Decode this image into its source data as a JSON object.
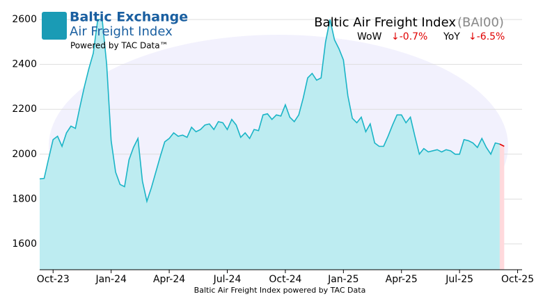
{
  "chart_data": {
    "type": "area",
    "title": "Baltic Air Freight Index",
    "title_code": "(BAI00)",
    "wow_label": "WoW",
    "wow_change": "↓-0.7%",
    "yoy_label": "YoY",
    "yoy_change": "↓-6.5%",
    "logo_title": "Baltic Exchange",
    "logo_subtitle": "Air Freight Index",
    "logo_powered": "Powered by TAC Data™",
    "caption": "Baltic Air Freight Index powered by TAC Data",
    "categories": [
      null,
      null,
      null,
      "Oct-23",
      null,
      null,
      null,
      null,
      null,
      null,
      null,
      null,
      null,
      null,
      null,
      null,
      "Jan-24",
      null,
      null,
      null,
      null,
      null,
      null,
      null,
      null,
      null,
      null,
      null,
      null,
      "Apr-24",
      null,
      null,
      null,
      null,
      null,
      null,
      null,
      null,
      null,
      null,
      null,
      null,
      "Jul-24",
      null,
      null,
      null,
      null,
      null,
      null,
      null,
      null,
      null,
      null,
      null,
      null,
      "Oct-24",
      null,
      null,
      null,
      null,
      null,
      null,
      null,
      null,
      null,
      null,
      null,
      null,
      "Jan-25",
      null,
      null,
      null,
      null,
      null,
      null,
      null,
      null,
      null,
      null,
      null,
      null,
      "Apr-25",
      null,
      null,
      null,
      null,
      null,
      null,
      null,
      null,
      null,
      null,
      null,
      null,
      "Jul-25",
      null,
      null,
      null,
      null,
      null,
      null,
      null,
      null,
      null,
      null,
      null,
      null,
      "Oct-25",
      null
    ],
    "series": [
      {
        "color": "#1ab4c6",
        "fill": "#bdecf1",
        "change_color": "#e00000",
        "change_fill": "#ffd9dc",
        "values": [
          1890,
          1892,
          1980,
          2065,
          2080,
          2035,
          2095,
          2125,
          2115,
          2210,
          2300,
          2380,
          2450,
          2600,
          2600,
          2400,
          2060,
          1920,
          1865,
          1855,
          1975,
          2030,
          2070,
          1880,
          1790,
          1850,
          1920,
          1990,
          2055,
          2070,
          2095,
          2080,
          2085,
          2075,
          2120,
          2100,
          2110,
          2130,
          2135,
          2110,
          2145,
          2140,
          2110,
          2155,
          2130,
          2075,
          2095,
          2070,
          2110,
          2105,
          2175,
          2180,
          2155,
          2175,
          2170,
          2220,
          2165,
          2145,
          2175,
          2250,
          2340,
          2360,
          2330,
          2340,
          2500,
          2600,
          2510,
          2470,
          2420,
          2260,
          2160,
          2140,
          2165,
          2100,
          2135,
          2050,
          2035,
          2035,
          2080,
          2130,
          2175,
          2175,
          2140,
          2165,
          2080,
          2000,
          2025,
          2010,
          2015,
          2020,
          2010,
          2020,
          2015,
          2000,
          2000,
          2065,
          2060,
          2050,
          2030,
          2070,
          2030,
          2000,
          2050,
          2045,
          2035,
          null,
          null,
          null,
          null
        ]
      }
    ],
    "ylim": [
      1485,
      2650
    ],
    "yticks": [
      1600,
      1800,
      2000,
      2200,
      2400,
      2600
    ],
    "grid": true
  }
}
